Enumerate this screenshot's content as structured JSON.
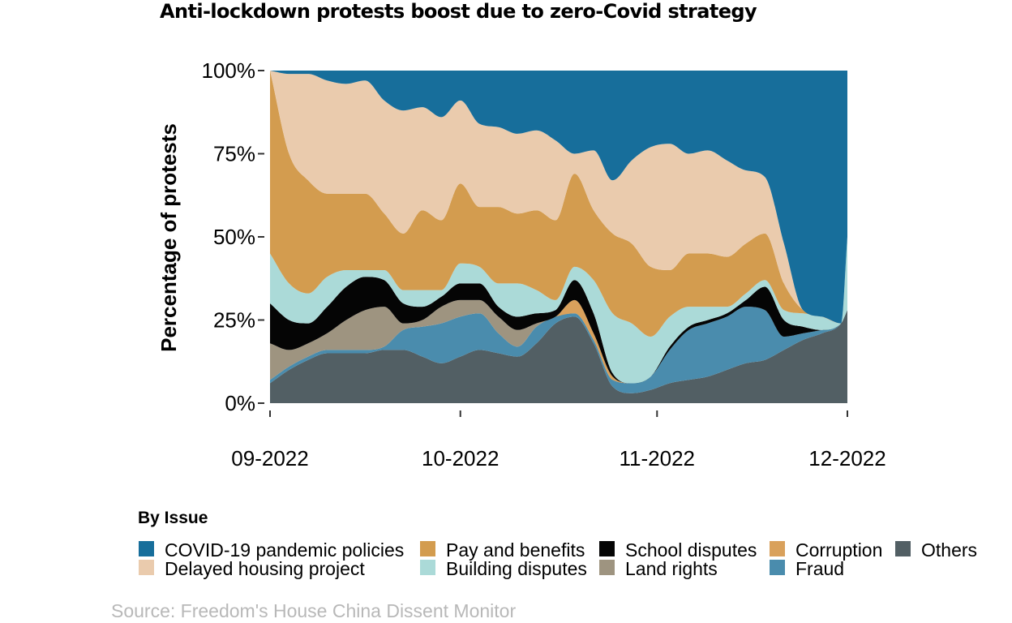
{
  "chart_data": {
    "type": "area",
    "stacked": "percent",
    "title": "Anti-lockdown protests boost due to zero-Covid strategy",
    "ylabel": "Percentage of protests",
    "xlabel": "",
    "ylim": [
      0,
      100
    ],
    "yticks": [
      "0%",
      "25%",
      "50%",
      "75%",
      "100%"
    ],
    "ytick_values": [
      0,
      25,
      50,
      75,
      100
    ],
    "xticks": [
      "09-2022",
      "10-2022",
      "11-2022",
      "12-2022"
    ],
    "xtick_values": [
      0,
      30,
      61,
      91
    ],
    "x": [
      0,
      3,
      6,
      9,
      12,
      15,
      18,
      21,
      24,
      27,
      30,
      33,
      36,
      39,
      42,
      45,
      48,
      51,
      54,
      57,
      60,
      63,
      66,
      69,
      72,
      75,
      78,
      81,
      84,
      87,
      90,
      91
    ],
    "legend_title": "By Issue",
    "source": "Source: Freedom's House China Dissent Monitor",
    "series": [
      {
        "name": "Others",
        "color": "#525f64",
        "values": [
          6,
          10,
          13,
          15,
          15,
          15,
          16,
          16,
          14,
          12,
          14,
          16,
          15,
          14,
          18,
          24,
          26,
          18,
          5,
          3,
          4,
          6,
          7,
          8,
          10,
          12,
          13,
          16,
          19,
          21,
          24,
          28
        ]
      },
      {
        "name": "Fraud",
        "color": "#4a8cad",
        "values": [
          1,
          1,
          1,
          1,
          1,
          1,
          1,
          6,
          9,
          12,
          12,
          11,
          6,
          3,
          5,
          2,
          1,
          1,
          2,
          3,
          4,
          10,
          15,
          16,
          16,
          17,
          15,
          4,
          2,
          1,
          0,
          0
        ]
      },
      {
        "name": "Land rights",
        "color": "#9e9480",
        "values": [
          11,
          5,
          4,
          5,
          9,
          12,
          12,
          2,
          2,
          5,
          5,
          4,
          5,
          5,
          1,
          0,
          0,
          0,
          0,
          0,
          0,
          0,
          0,
          0,
          0,
          0,
          0,
          0,
          0,
          0,
          0,
          0
        ]
      },
      {
        "name": "Corruption",
        "color": "#d9a15c",
        "values": [
          0,
          0,
          0,
          0,
          0,
          0,
          0,
          0,
          0,
          0,
          0,
          0,
          0,
          0,
          0,
          0,
          4,
          2,
          1,
          0,
          0,
          0,
          0,
          0,
          0,
          0,
          0,
          0,
          0,
          0,
          0,
          0
        ]
      },
      {
        "name": "School disputes",
        "color": "#050505",
        "values": [
          12,
          9,
          6,
          8,
          10,
          10,
          8,
          6,
          4,
          3,
          5,
          5,
          3,
          4,
          3,
          2,
          6,
          6,
          1,
          0,
          0,
          1,
          1,
          1,
          1,
          2,
          7,
          5,
          2,
          0,
          0,
          0
        ]
      },
      {
        "name": "Building disputes",
        "color": "#abdad8",
        "values": [
          15,
          11,
          9,
          9,
          5,
          2,
          3,
          4,
          5,
          2,
          6,
          5,
          7,
          10,
          7,
          3,
          4,
          10,
          18,
          18,
          12,
          9,
          6,
          4,
          2,
          2,
          2,
          3,
          4,
          4,
          0,
          22
        ]
      },
      {
        "name": "Pay and benefits",
        "color": "#d39c4f",
        "values": [
          55,
          39,
          34,
          25,
          23,
          23,
          17,
          17,
          24,
          21,
          24,
          18,
          23,
          21,
          24,
          24,
          28,
          21,
          24,
          24,
          21,
          14,
          16,
          16,
          15,
          15,
          14,
          8,
          1,
          0,
          0,
          0
        ]
      },
      {
        "name": "Delayed housing project",
        "color": "#eacbad",
        "values": [
          0,
          24,
          32,
          34,
          33,
          34,
          34,
          37,
          31,
          31,
          25,
          25,
          24,
          24,
          24,
          24,
          6,
          18,
          16,
          25,
          36,
          38,
          30,
          31,
          29,
          22,
          17,
          12,
          0,
          0,
          0,
          0
        ]
      },
      {
        "name": "COVID-19 pandemic policies",
        "color": "#176e9b",
        "values": [
          0,
          1,
          1,
          3,
          4,
          3,
          9,
          12,
          11,
          14,
          9,
          16,
          17,
          19,
          18,
          21,
          25,
          24,
          33,
          27,
          23,
          22,
          25,
          24,
          27,
          30,
          32,
          52,
          72,
          74,
          76,
          50
        ]
      }
    ]
  }
}
